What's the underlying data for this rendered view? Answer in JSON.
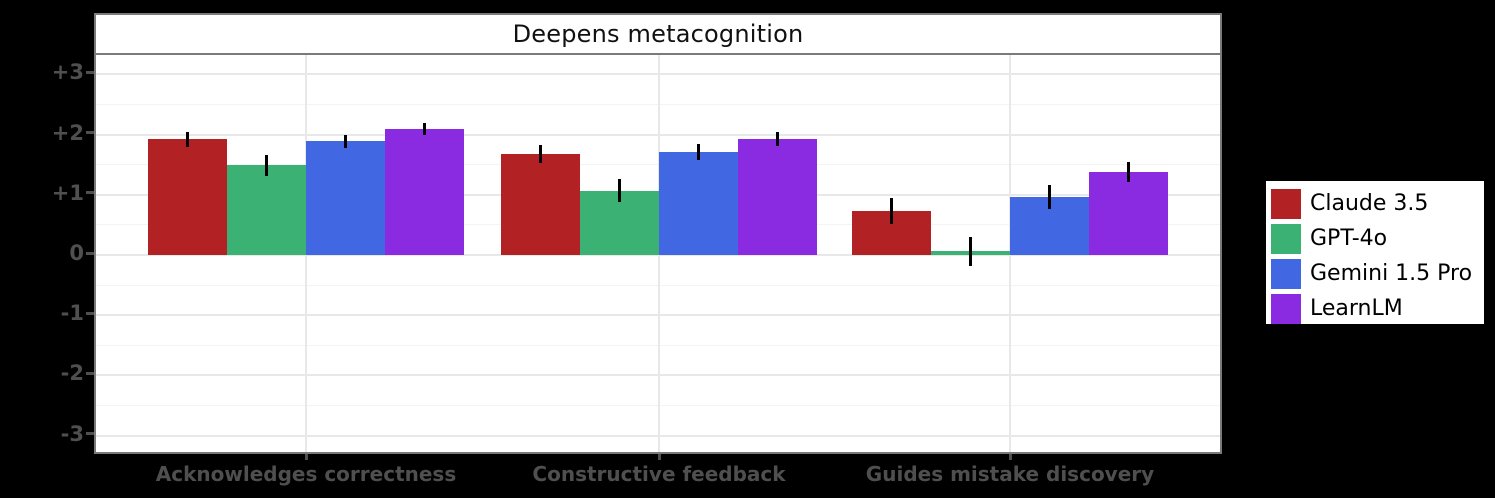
{
  "figure": {
    "background_color": "#000000",
    "plot_background_color": "#ffffff",
    "frame_border_color": "#7a7a7a",
    "major_grid_color": "#e8e8e8",
    "minor_grid_color": "#f4f4f4",
    "tick_label_color": "#4f4f4f",
    "error_bar_color": "#000000"
  },
  "chart_data": {
    "type": "bar",
    "title": "Deepens metacognition",
    "categories": [
      "Acknowledges correctness",
      "Constructive feedback",
      "Guides mistake discovery"
    ],
    "series": [
      {
        "name": "Claude 3.5",
        "color": "#b22225",
        "values": [
          1.92,
          1.68,
          0.73
        ],
        "errors": [
          0.13,
          0.15,
          0.22
        ]
      },
      {
        "name": "GPT-4o",
        "color": "#3bb273",
        "values": [
          1.49,
          1.07,
          0.06
        ],
        "errors": [
          0.17,
          0.19,
          0.24
        ]
      },
      {
        "name": "Gemini 1.5 Pro",
        "color": "#4267e3",
        "values": [
          1.89,
          1.71,
          0.97
        ],
        "errors": [
          0.11,
          0.14,
          0.2
        ]
      },
      {
        "name": "LearnLM",
        "color": "#8a2be2",
        "values": [
          2.1,
          1.93,
          1.38
        ],
        "errors": [
          0.1,
          0.12,
          0.16
        ]
      }
    ],
    "yticks": [
      {
        "label": "+3",
        "value": 3
      },
      {
        "label": "+2",
        "value": 2
      },
      {
        "label": "+1",
        "value": 1
      },
      {
        "label": "0",
        "value": 0
      },
      {
        "label": "-1",
        "value": -1
      },
      {
        "label": "-2",
        "value": -2
      },
      {
        "label": "-3",
        "value": -3
      }
    ],
    "minor_tick_step": 0.5,
    "ylim": [
      -3.33,
      3.33
    ],
    "xlabel": "",
    "ylabel": "",
    "grid": "horizontal-major-minor plus vertical at category centers",
    "legend_position": "right of plot, outside"
  }
}
